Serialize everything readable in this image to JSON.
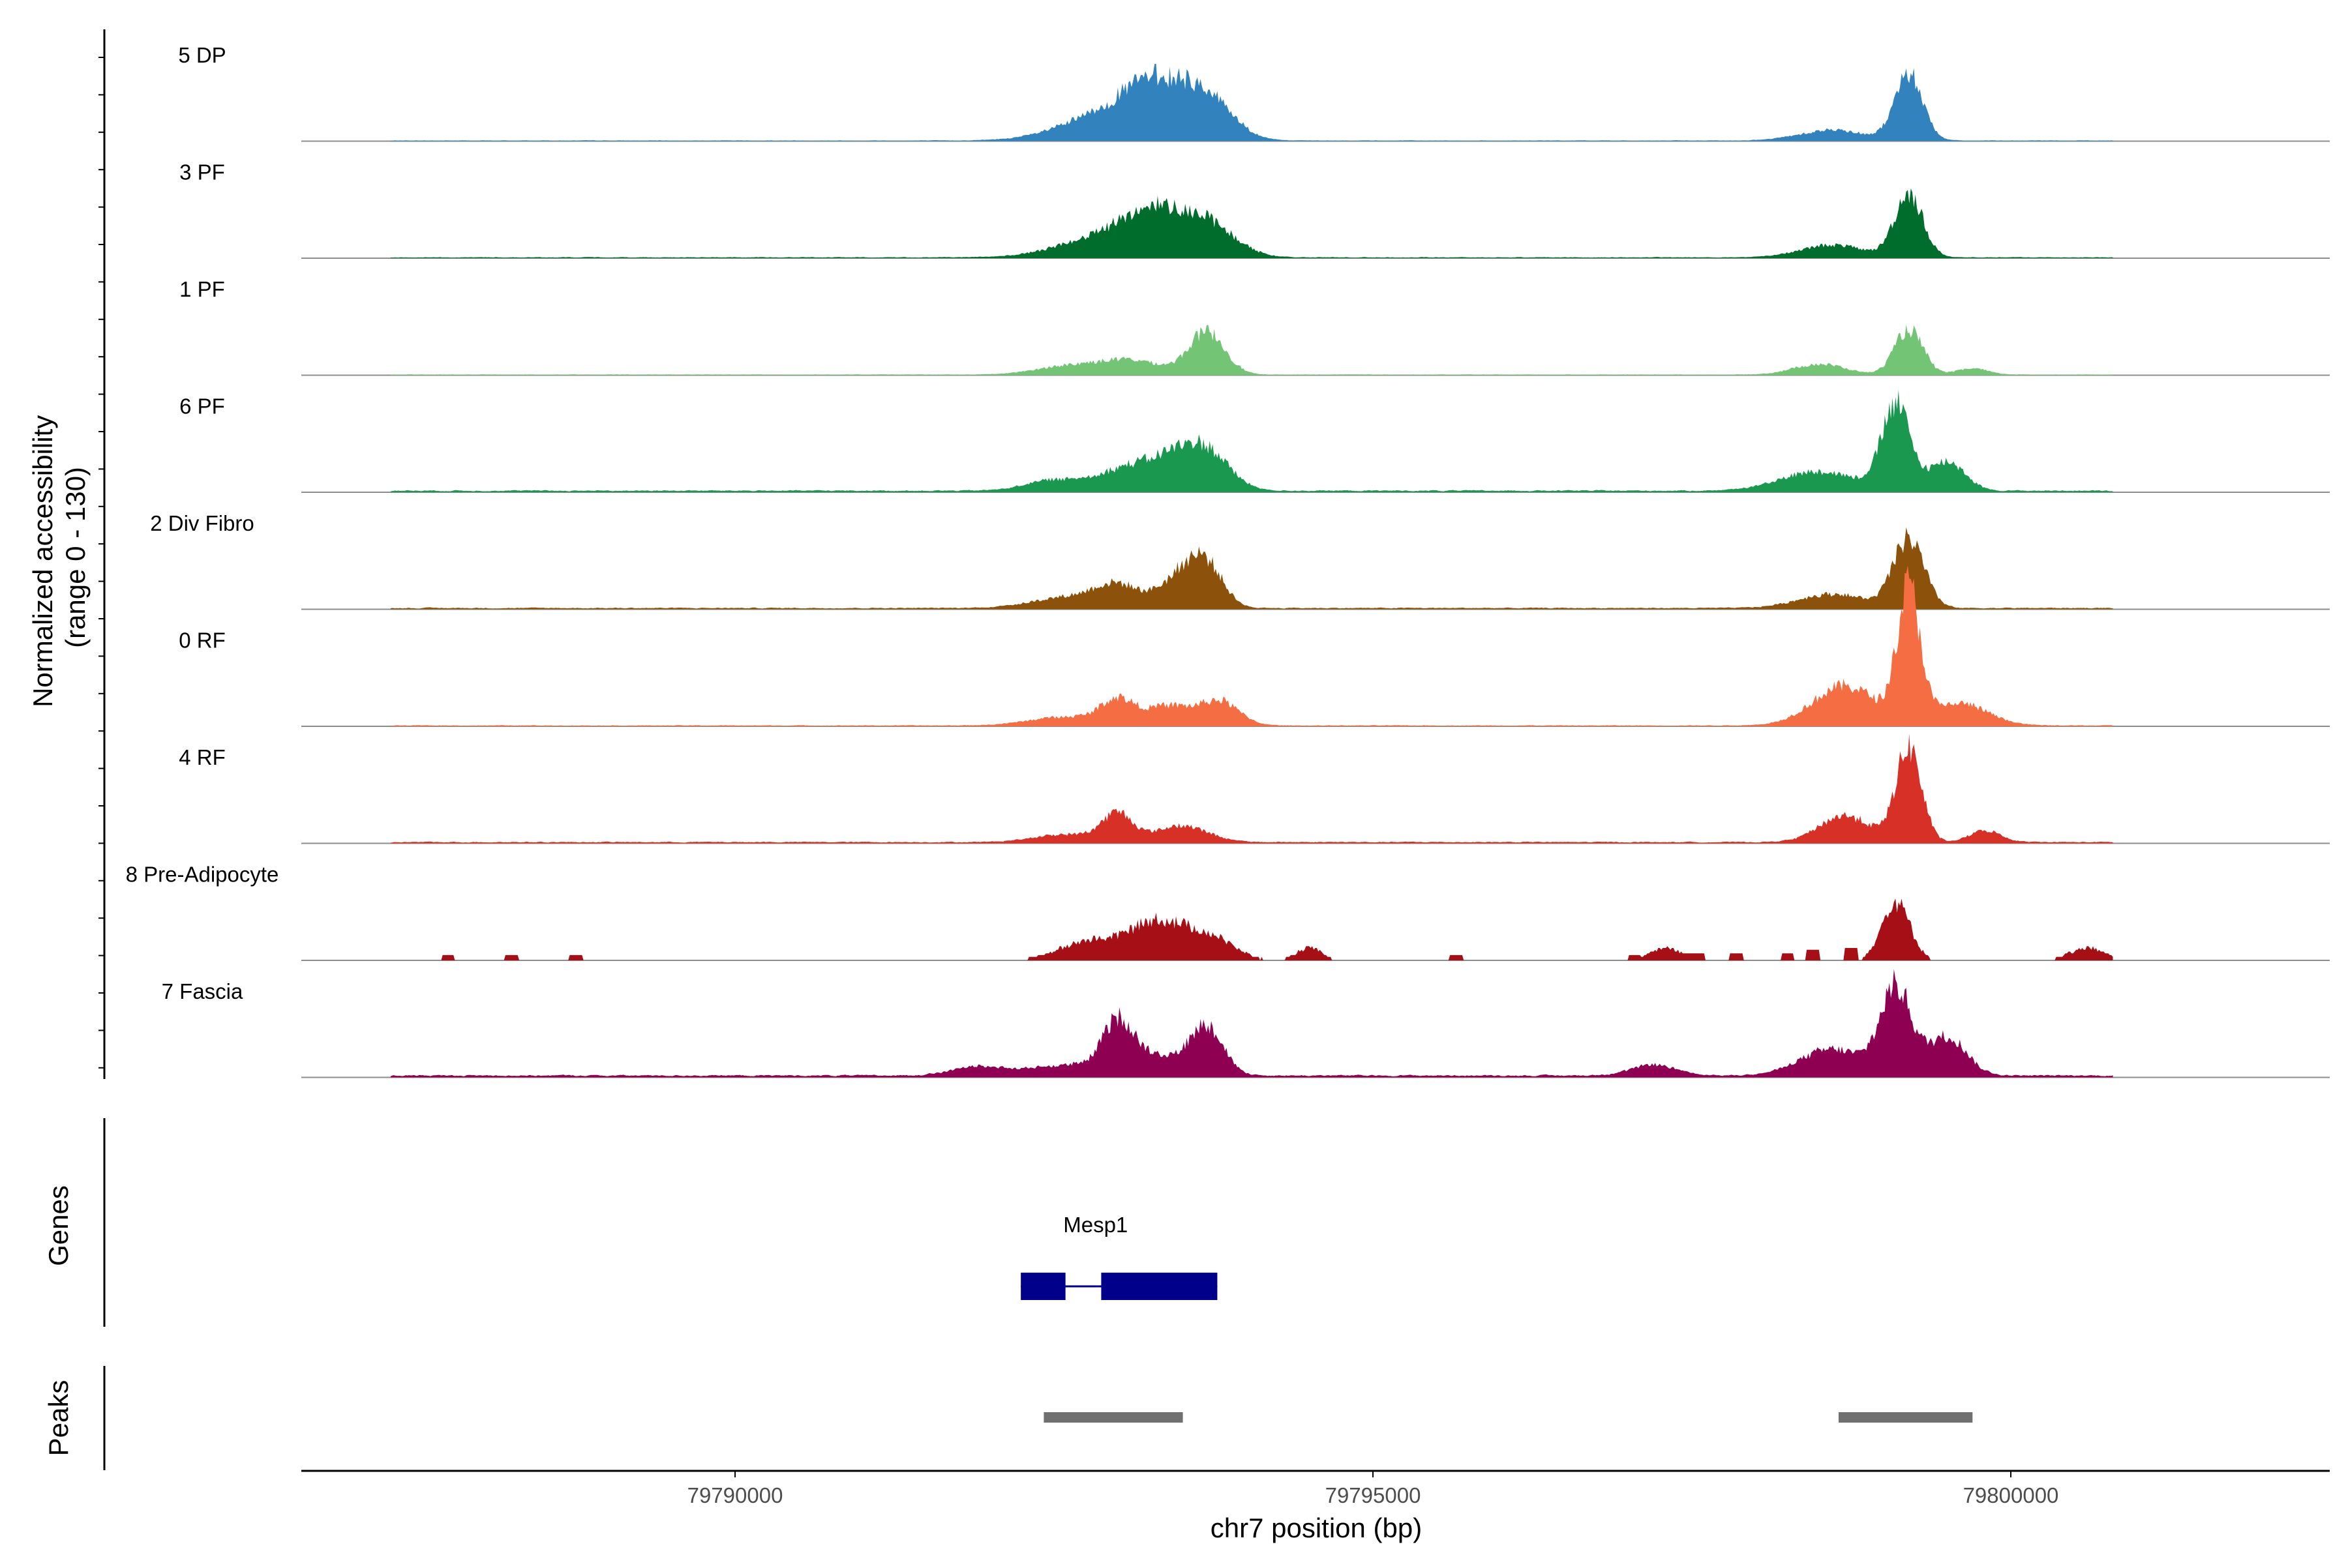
{
  "chart_data": {
    "type": "area",
    "y_axis_title_line1": "Normalized accessibility",
    "y_axis_title_line2": "(range 0 - 130)",
    "y_range": [
      0,
      130
    ],
    "x_axis_title": "chr7 position (bp)",
    "x_range": [
      79786600,
      79802500
    ],
    "x_ticks": [
      79790000,
      79795000,
      79800000
    ],
    "x_tick_labels": [
      "79790000",
      "79795000",
      "79800000"
    ],
    "genes_panel_title": "Genes",
    "peaks_panel_title": "Peaks",
    "tracks": [
      {
        "name": "5 DP",
        "color": "#3182bd",
        "baseline": 0.6,
        "peaks": [
          [
            79793000,
            34,
            380
          ],
          [
            79793300,
            43,
            220
          ],
          [
            79793700,
            45,
            200
          ],
          [
            79799200,
            76,
            110
          ],
          [
            79798600,
            12,
            250
          ]
        ]
      },
      {
        "name": "3 PF",
        "color": "#006d2c",
        "baseline": 0.8,
        "peaks": [
          [
            79793000,
            28,
            380
          ],
          [
            79793300,
            33,
            220
          ],
          [
            79793700,
            34,
            220
          ],
          [
            79799200,
            72,
            110
          ],
          [
            79798600,
            14,
            250
          ]
        ]
      },
      {
        "name": "1 PF",
        "color": "#74c476",
        "baseline": 0.6,
        "peaks": [
          [
            79792600,
            9,
            250
          ],
          [
            79793100,
            16,
            250
          ],
          [
            79793700,
            48,
            140
          ],
          [
            79799200,
            51,
            110
          ],
          [
            79798500,
            12,
            200
          ],
          [
            79799700,
            7,
            120
          ]
        ]
      },
      {
        "name": "6 PF",
        "color": "#1a9850",
        "baseline": 1.5,
        "peaks": [
          [
            79792500,
            12,
            220
          ],
          [
            79793000,
            19,
            200
          ],
          [
            79793400,
            34,
            220
          ],
          [
            79793700,
            38,
            180
          ],
          [
            79799100,
            95,
            110
          ],
          [
            79798500,
            22,
            300
          ],
          [
            79799500,
            33,
            140
          ]
        ]
      },
      {
        "name": "2 Div Fibro",
        "color": "#8c510a",
        "baseline": 1.2,
        "peaks": [
          [
            79792600,
            12,
            280
          ],
          [
            79793000,
            24,
            180
          ],
          [
            79793500,
            36,
            160
          ],
          [
            79793700,
            41,
            130
          ],
          [
            79799200,
            78,
            120
          ],
          [
            79798600,
            16,
            260
          ]
        ]
      },
      {
        "name": "0 RF",
        "color": "#f46d43",
        "baseline": 0.8,
        "peaks": [
          [
            79792600,
            10,
            280
          ],
          [
            79793000,
            27,
            130
          ],
          [
            79793400,
            22,
            180
          ],
          [
            79793800,
            27,
            150
          ],
          [
            79799200,
            148,
            90
          ],
          [
            79798700,
            45,
            250
          ],
          [
            79799600,
            25,
            220
          ]
        ]
      },
      {
        "name": "4 RF",
        "color": "#d73027",
        "baseline": 1.2,
        "peaks": [
          [
            79792600,
            9,
            250
          ],
          [
            79793000,
            31,
            120
          ],
          [
            79793500,
            19,
            200
          ],
          [
            79799200,
            107,
            100
          ],
          [
            79798700,
            30,
            200
          ],
          [
            79799800,
            13,
            120
          ]
        ]
      },
      {
        "name": "8 Pre-Adipocyte",
        "color": "#a50f15",
        "baseline": 0,
        "peaks": [
          [
            79792800,
            22,
            250
          ],
          [
            79793300,
            40,
            200
          ],
          [
            79793700,
            27,
            200
          ],
          [
            79799100,
            66,
            110
          ],
          [
            79794500,
            14,
            100
          ],
          [
            79797300,
            14,
            120
          ],
          [
            79800600,
            14,
            140
          ]
        ]
      },
      {
        "name": "7 Fascia",
        "color": "#8e0152",
        "baseline": 1.8,
        "peaks": [
          [
            79792600,
            12,
            300
          ],
          [
            79793000,
            54,
            120
          ],
          [
            79793300,
            22,
            200
          ],
          [
            79793700,
            55,
            130
          ],
          [
            79799100,
            98,
            120
          ],
          [
            79798600,
            30,
            250
          ],
          [
            79799500,
            45,
            150
          ],
          [
            79797200,
            12,
            180
          ],
          [
            79791900,
            10,
            200
          ]
        ]
      }
    ],
    "genes": [
      {
        "name": "Mesp1",
        "start": 79792240,
        "end": 79793780,
        "exons": [
          [
            79792240,
            79792590
          ],
          [
            79792870,
            79793780
          ]
        ]
      }
    ],
    "peaks": [
      [
        79792420,
        79793510
      ],
      [
        79798650,
        79799700
      ]
    ]
  }
}
